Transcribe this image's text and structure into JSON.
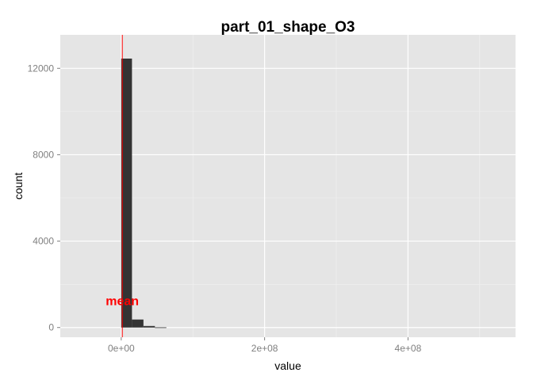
{
  "chart_data": {
    "type": "histogram",
    "title": "part_01_shape_O3",
    "xlabel": "value",
    "ylabel": "count",
    "xlim": [
      -85000000,
      550000000
    ],
    "ylim": [
      -450,
      13550
    ],
    "x_ticks": [
      {
        "value": 0,
        "label": "0e+00"
      },
      {
        "value": 200000000,
        "label": "2e+08"
      },
      {
        "value": 400000000,
        "label": "4e+08"
      }
    ],
    "y_ticks": [
      {
        "value": 0,
        "label": "0"
      },
      {
        "value": 4000,
        "label": "4000"
      },
      {
        "value": 8000,
        "label": "8000"
      },
      {
        "value": 12000,
        "label": "12000"
      }
    ],
    "bins": [
      {
        "x0": 0,
        "x1": 15000000,
        "count": 12450
      },
      {
        "x0": 15000000,
        "x1": 31000000,
        "count": 370
      },
      {
        "x0": 31000000,
        "x1": 47000000,
        "count": 70
      },
      {
        "x0": 47000000,
        "x1": 63000000,
        "count": 8
      }
    ],
    "mean_line": {
      "x": 1500000,
      "label": "mean",
      "label_y": 1250,
      "color": "#ff0000"
    },
    "grid": true,
    "colors": {
      "panel": "#e5e5e5",
      "grid_major": "#ffffff",
      "grid_minor": "#f2f2f2",
      "bar": "#333333",
      "mean": "#ff0000"
    }
  }
}
